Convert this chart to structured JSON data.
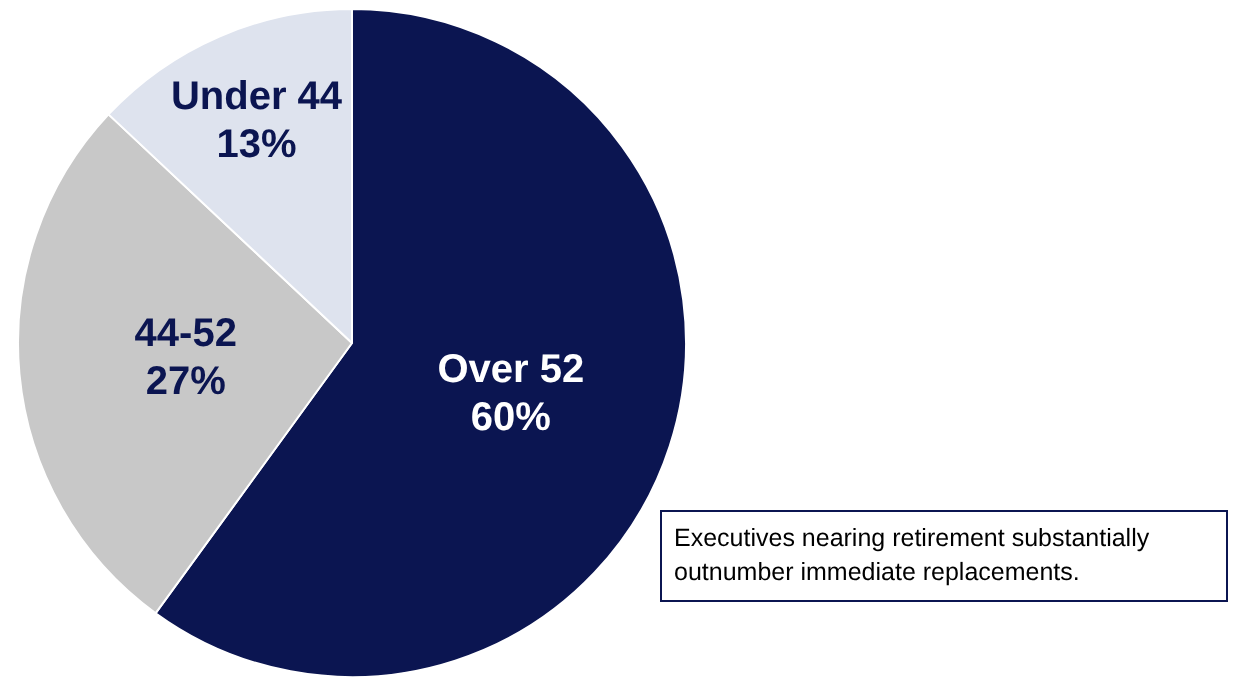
{
  "chart_data": {
    "type": "pie",
    "categories": [
      "Over 52",
      "44-52",
      "Under 44"
    ],
    "values": [
      60,
      27,
      13
    ],
    "value_labels": [
      "60%",
      "27%",
      "13%"
    ],
    "colors": [
      "#0b1551",
      "#c8c8c8",
      "#dee3ee"
    ],
    "annotations": [
      "Executives nearing retirement substantially outnumber immediate replacements."
    ],
    "legend": false
  }
}
